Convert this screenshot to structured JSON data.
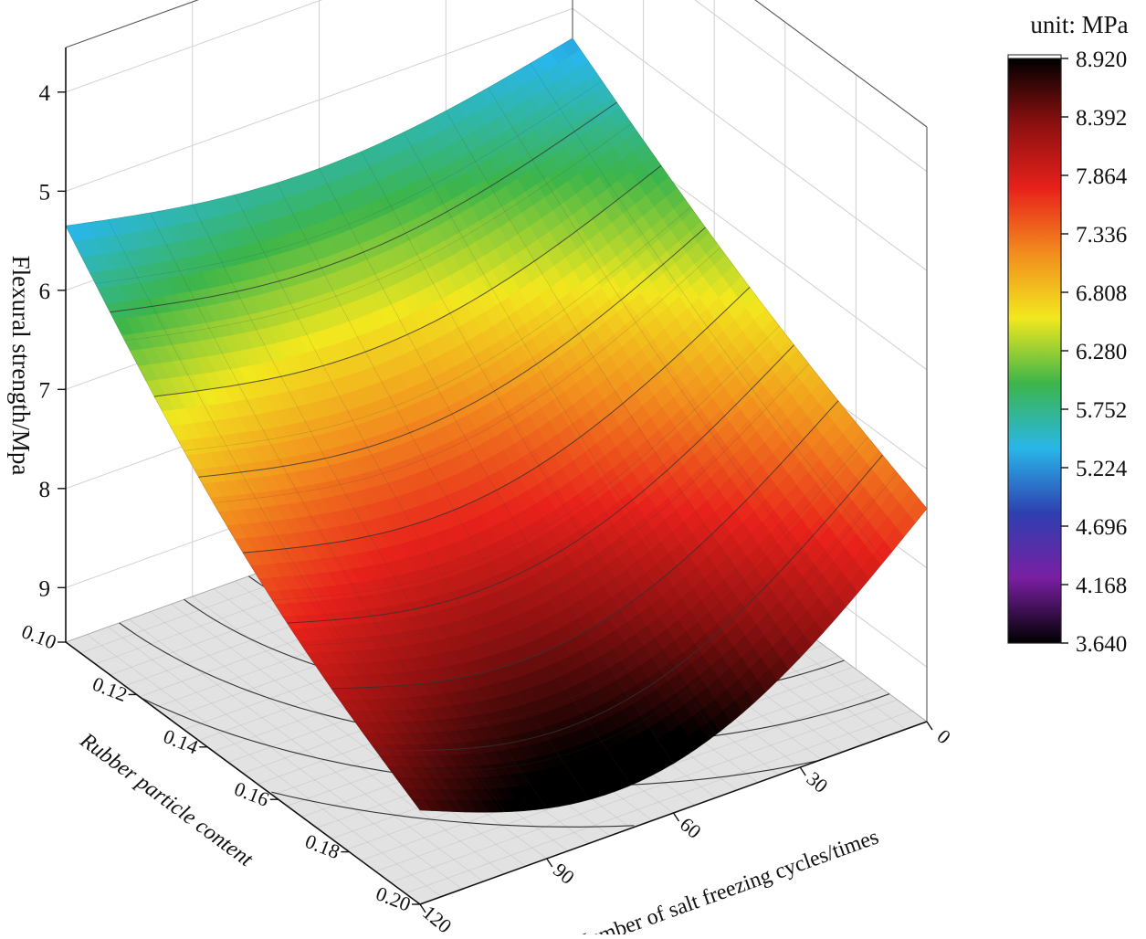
{
  "chart_data": {
    "type": "surface3d",
    "zlabel": "Flexural strength/Mpa",
    "xlabel": "Number of salt freezing cycles/times",
    "ylabel": "Rubber particle content",
    "z_ticks": [
      "4",
      "5",
      "6",
      "7",
      "8",
      "9"
    ],
    "x_ticks": [
      "0",
      "30",
      "60",
      "90",
      "120"
    ],
    "y_ticks": [
      "0.10",
      "0.12",
      "0.14",
      "0.16",
      "0.18",
      "0.20"
    ],
    "z_axis_inverted": true,
    "xlim": [
      0,
      120
    ],
    "ylim": [
      0.1,
      0.2
    ],
    "zlim": [
      3.6,
      9.6
    ],
    "corner_values": [
      {
        "x": 0,
        "y": 0.1,
        "z": 5.3
      },
      {
        "x": 120,
        "y": 0.1,
        "z": 5.35
      },
      {
        "x": 0,
        "y": 0.2,
        "z": 7.4
      },
      {
        "x": 120,
        "y": 0.2,
        "z": 8.6
      }
    ],
    "surface_z_min": 5.25,
    "surface_z_max": 8.6,
    "floor_contours": true,
    "colorbar": {
      "title": "unit: MPa",
      "ticks": [
        "8.920",
        "8.392",
        "7.864",
        "7.336",
        "6.808",
        "6.280",
        "5.752",
        "5.224",
        "4.696",
        "4.168",
        "3.640"
      ],
      "min": 3.64,
      "max": 8.92,
      "colors": [
        "#000000",
        "#7a1fa2",
        "#2e3fb0",
        "#29b6e8",
        "#3cb54a",
        "#f2e81e",
        "#f28c1e",
        "#e8211b",
        "#8b1010",
        "#000000"
      ]
    }
  }
}
